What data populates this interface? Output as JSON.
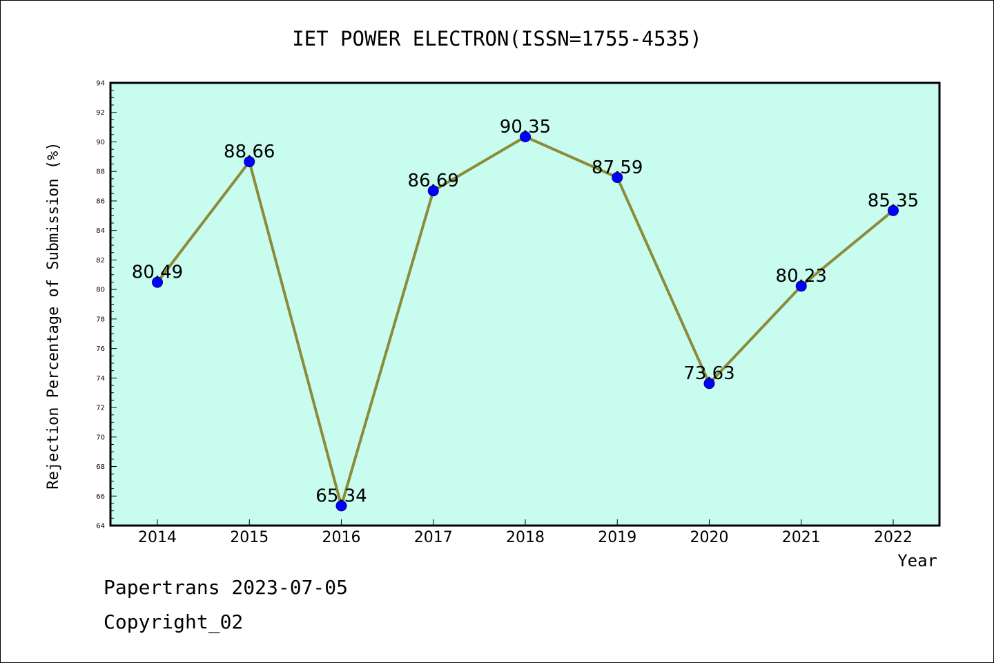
{
  "chart_data": {
    "type": "line",
    "title": "IET POWER ELECTRON(ISSN=1755-4535)",
    "xlabel": "Year",
    "ylabel": "Rejection Percentage of Submission (%)",
    "categories": [
      "2014",
      "2015",
      "2016",
      "2017",
      "2018",
      "2019",
      "2020",
      "2021",
      "2022"
    ],
    "values": [
      80.49,
      88.66,
      65.34,
      86.69,
      90.35,
      87.59,
      73.63,
      80.23,
      85.35
    ],
    "data_labels": [
      "80.49",
      "88.66",
      "65.34",
      "86.69",
      "90.35",
      "87.59",
      "73.63",
      "80.23",
      "85.35"
    ],
    "ylim": [
      64,
      94
    ],
    "yticks": [
      "64",
      "66",
      "68",
      "70",
      "72",
      "74",
      "76",
      "78",
      "80",
      "82",
      "84",
      "86",
      "88",
      "90",
      "92",
      "94"
    ],
    "grid": false,
    "colors": {
      "plot_background": "#c8fcee",
      "line": "#8b8b3a",
      "marker": "#0000ff"
    }
  },
  "footer": {
    "line1": "Papertrans 2023-07-05",
    "line2": "Copyright_02"
  }
}
